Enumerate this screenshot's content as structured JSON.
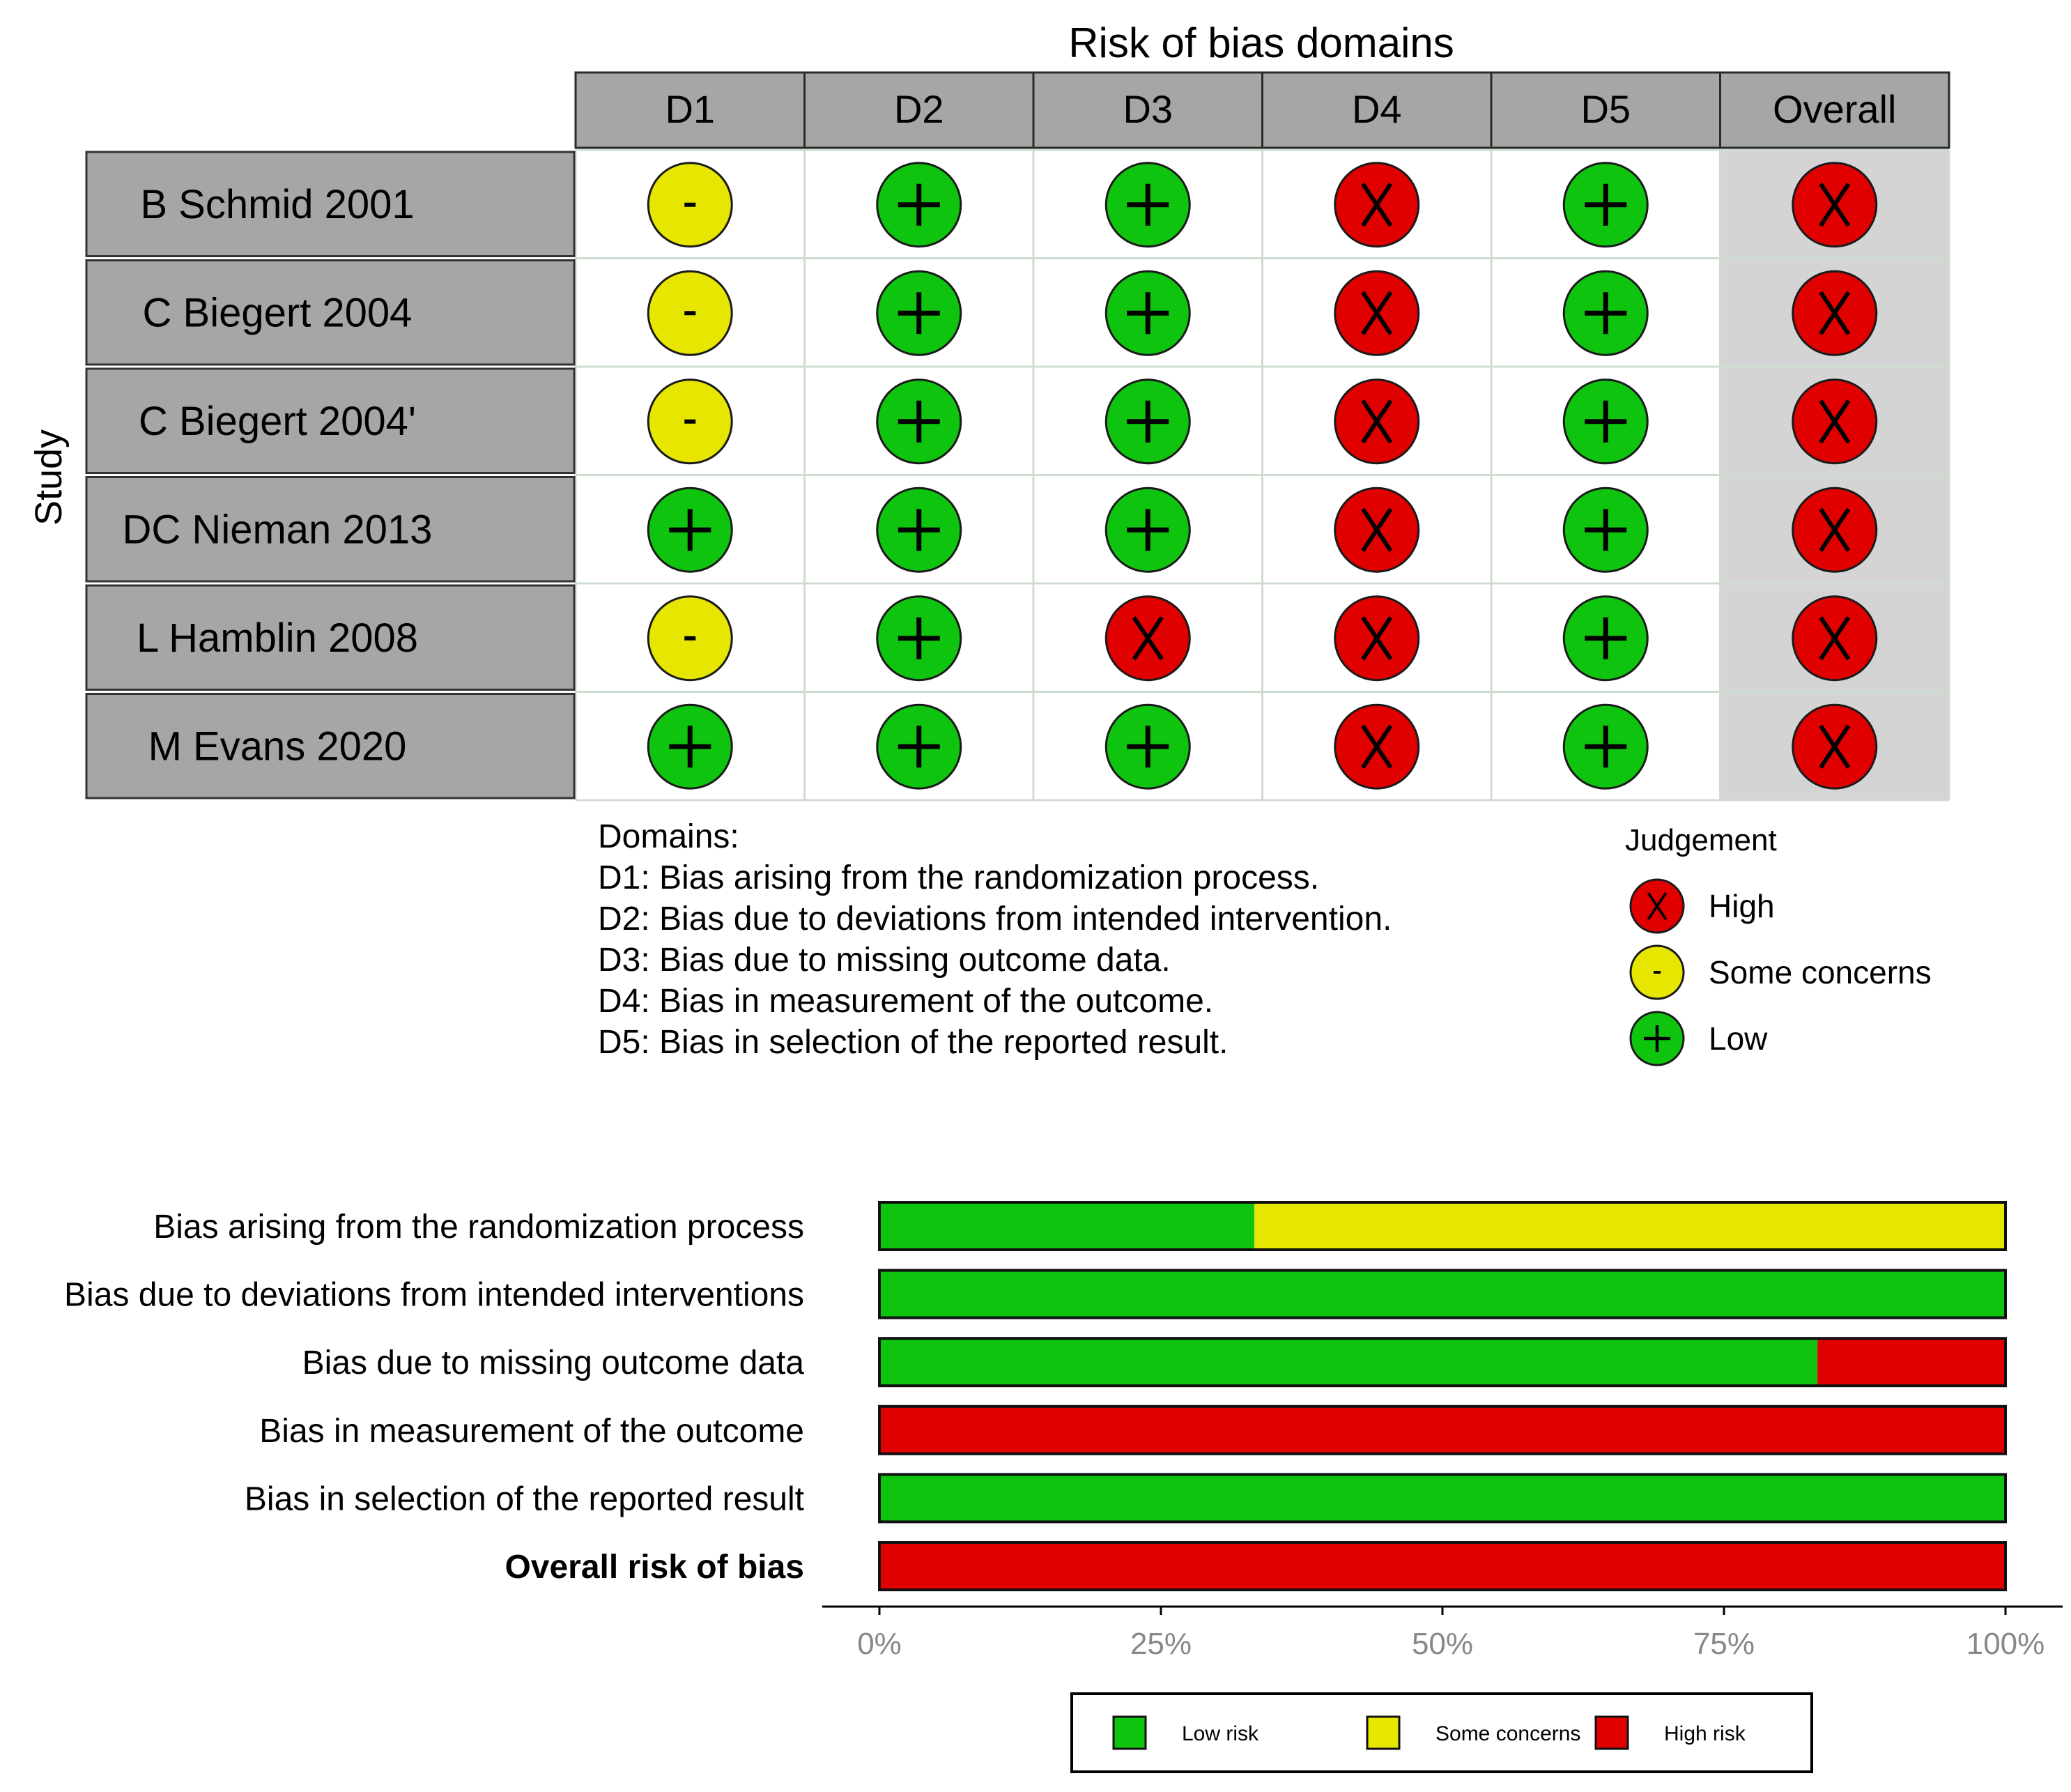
{
  "traffic_light": {
    "title": "Risk of bias domains",
    "y_label": "Study",
    "domains": [
      "D1",
      "D2",
      "D3",
      "D4",
      "D5",
      "Overall"
    ],
    "studies": [
      {
        "name": "B Schmid 2001",
        "judgements": [
          "some",
          "low",
          "low",
          "high",
          "low",
          "high"
        ]
      },
      {
        "name": "C Biegert 2004",
        "judgements": [
          "some",
          "low",
          "low",
          "high",
          "low",
          "high"
        ]
      },
      {
        "name": "C Biegert 2004'",
        "judgements": [
          "some",
          "low",
          "low",
          "high",
          "low",
          "high"
        ]
      },
      {
        "name": "DC Nieman 2013",
        "judgements": [
          "low",
          "low",
          "low",
          "high",
          "low",
          "high"
        ]
      },
      {
        "name": "L Hamblin 2008",
        "judgements": [
          "some",
          "low",
          "high",
          "high",
          "low",
          "high"
        ]
      },
      {
        "name": "M Evans 2020",
        "judgements": [
          "low",
          "low",
          "low",
          "high",
          "low",
          "high"
        ]
      }
    ],
    "symbols": {
      "high": "X",
      "some": "-",
      "low": "+"
    },
    "domains_key": {
      "heading": "Domains:",
      "lines": [
        "D1: Bias arising from the randomization process.",
        "D2: Bias due to deviations from intended intervention.",
        "D3: Bias due to missing outcome data.",
        "D4: Bias in measurement of the outcome.",
        "D5: Bias in selection of the reported result."
      ]
    },
    "judgement_legend": {
      "heading": "Judgement",
      "items": [
        {
          "key": "high",
          "label": "High"
        },
        {
          "key": "some",
          "label": "Some concerns"
        },
        {
          "key": "low",
          "label": "Low"
        }
      ]
    }
  },
  "colors": {
    "high": "#e00000",
    "some": "#e6e600",
    "low": "#0ec40e",
    "header_fill": "#a6a6a6",
    "overall_fill": "#d4d4d4",
    "grid_line": "#cfdccf"
  },
  "chart_data": {
    "type": "bar",
    "orientation": "horizontal",
    "stacked": true,
    "categories": [
      "Bias arising from the randomization process",
      "Bias due to deviations from intended interventions",
      "Bias due to missing outcome data",
      "Bias in measurement of the outcome",
      "Bias in selection of the reported result",
      "Overall risk of bias"
    ],
    "bold_category": "Overall risk of bias",
    "series": [
      {
        "name": "Low risk",
        "key": "low",
        "values": [
          33.3,
          100,
          83.3,
          0,
          100,
          0
        ]
      },
      {
        "name": "Some concerns",
        "key": "some",
        "values": [
          66.7,
          0,
          0,
          0,
          0,
          0
        ]
      },
      {
        "name": "High risk",
        "key": "high",
        "values": [
          0,
          0,
          16.7,
          100,
          0,
          100
        ]
      }
    ],
    "xlim": [
      0,
      100
    ],
    "ticks": [
      0,
      25,
      50,
      75,
      100
    ],
    "tick_labels": [
      "0%",
      "25%",
      "50%",
      "75%",
      "100%"
    ],
    "legend_position": "bottom"
  }
}
